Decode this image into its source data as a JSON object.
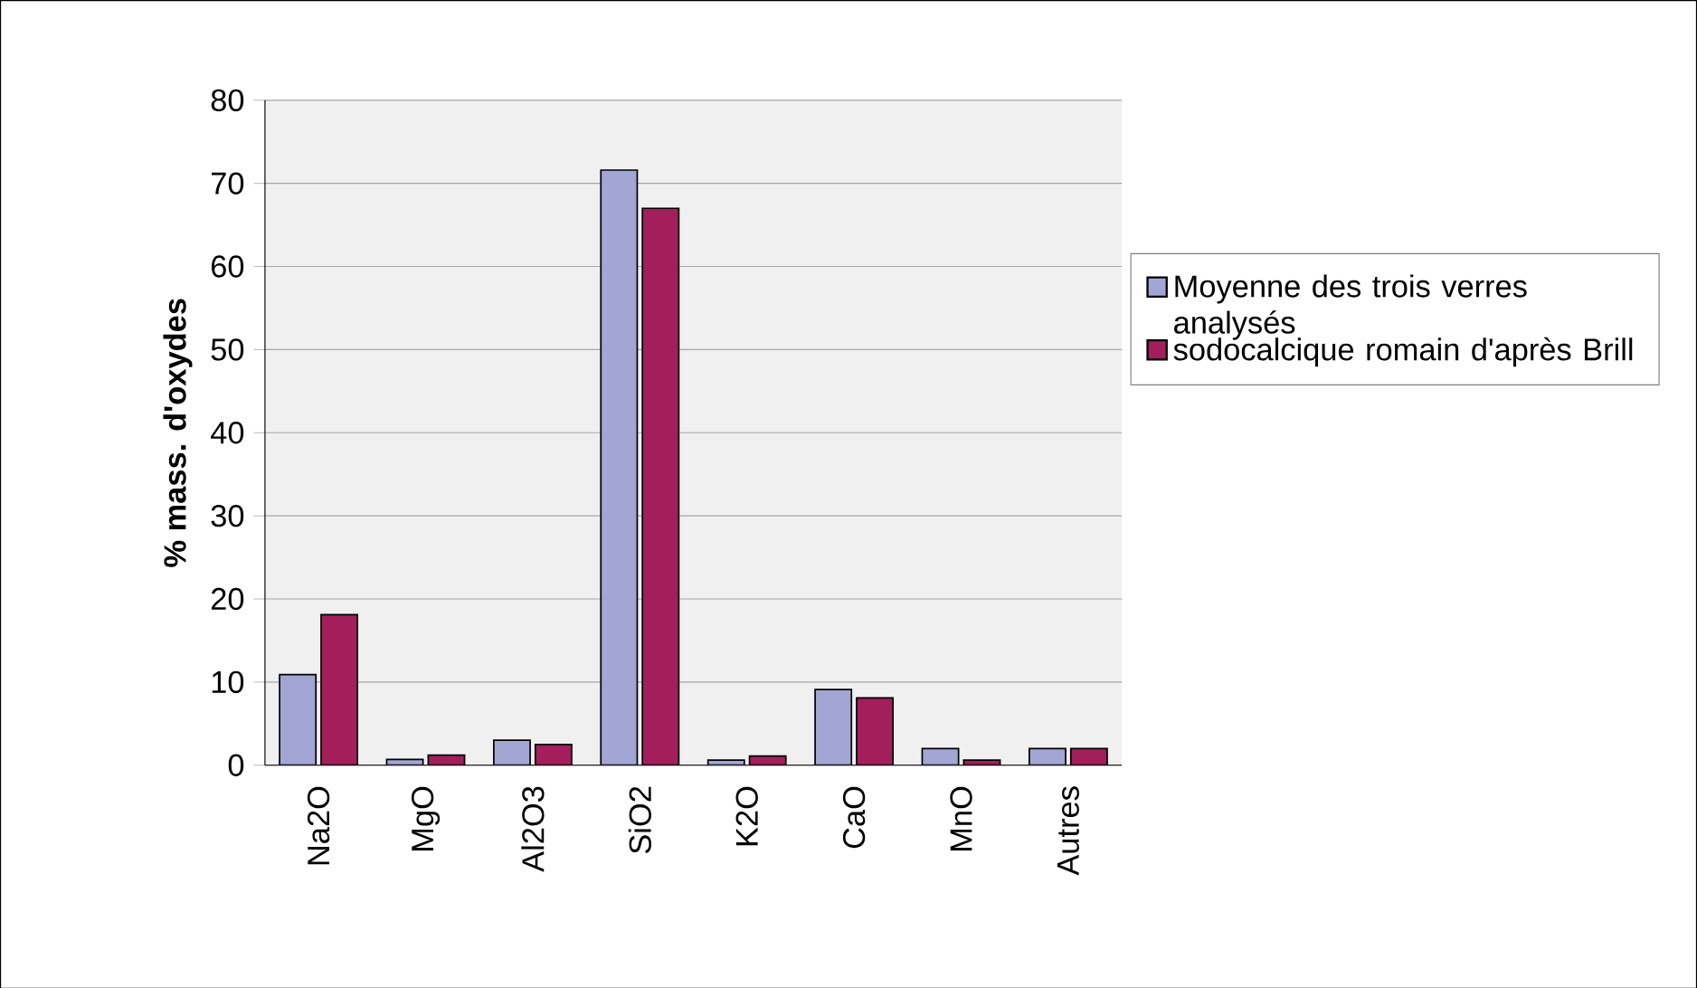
{
  "chart_data": {
    "type": "bar",
    "ylabel": "% mass. d'oxydes",
    "categories": [
      "Na2O",
      "MgO",
      "Al2O3",
      "SiO2",
      "K2O",
      "CaO",
      "MnO",
      "Autres"
    ],
    "series": [
      {
        "name": "Moyenne des trois verres analysés",
        "color": "#a3a6d4",
        "values": [
          10.9,
          0.7,
          3.0,
          71.6,
          0.6,
          9.1,
          2.0,
          2.0
        ]
      },
      {
        "name": "sodocalcique romain d'après Brill",
        "color": "#a31f5c",
        "values": [
          18.1,
          1.2,
          2.5,
          67.0,
          1.1,
          8.1,
          0.6,
          2.0
        ]
      }
    ],
    "ylim": [
      0,
      80
    ],
    "yticks": [
      0,
      10,
      20,
      30,
      40,
      50,
      60,
      70,
      80
    ],
    "grid": "y",
    "legend": "right"
  }
}
